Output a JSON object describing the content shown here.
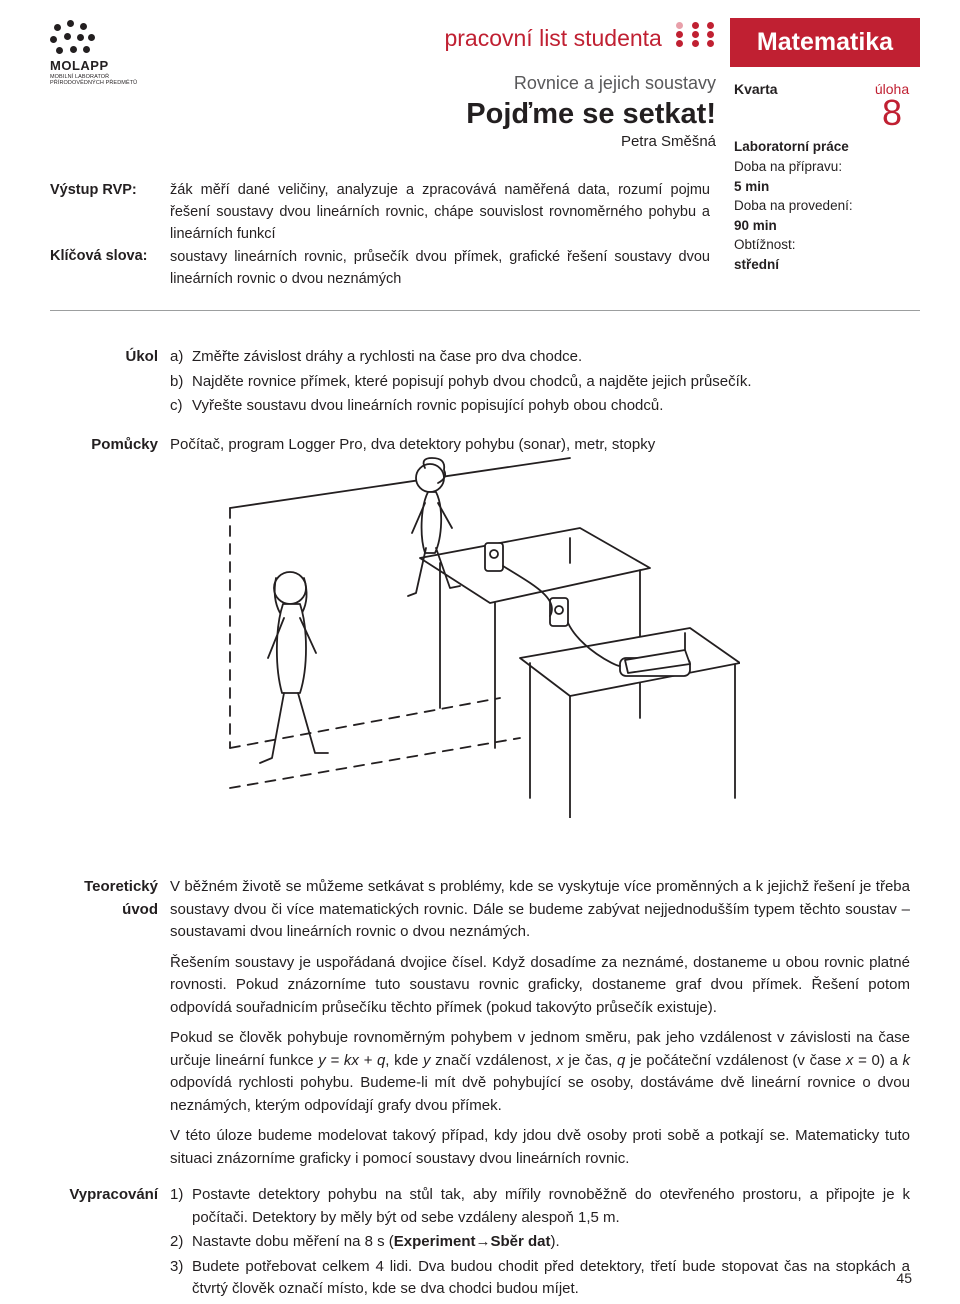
{
  "logo": {
    "name": "MOLAPP",
    "tagline": "MOBILNÍ LABORATOŘ PŘÍRODOVĚDNÝCH PŘEDMĚTŮ"
  },
  "header": {
    "worksheet_label": "pracovní list studenta",
    "subtitle": "Rovnice a jejich soustavy",
    "title": "Pojďme se setkat!",
    "author": "Petra Směšná"
  },
  "subject": "Matematika",
  "grade": "Kvarta",
  "task_label": "úloha",
  "task_number": "8",
  "info": {
    "lab_label": "Laboratorní práce",
    "prep_label": "Doba na přípravu:",
    "prep_value": "5 min",
    "exec_label": "Doba na provedení:",
    "exec_value": "90 min",
    "diff_label": "Obtížnost:",
    "diff_value": "střední"
  },
  "meta": {
    "rvp_label": "Výstup RVP:",
    "rvp_text": "žák měří dané veličiny, analyzuje a zpracovává naměřená data, rozumí pojmu řešení soustavy dvou lineárních rovnic, chápe souvislost rovnoměrného pohybu a lineárních funkcí",
    "kw_label": "Klíčová slova:",
    "kw_text": "soustavy lineárních rovnic, průsečík dvou přímek, grafické řešení soustavy dvou lineárních rovnic o dvou neznámých"
  },
  "sections": {
    "ukol_label": "Úkol",
    "ukol_items": [
      {
        "n": "a)",
        "t": "Změřte závislost dráhy a rychlosti na čase pro dva chodce."
      },
      {
        "n": "b)",
        "t": "Najděte rovnice přímek, které popisují pohyb dvou chodců, a najděte jejich průsečík."
      },
      {
        "n": "c)",
        "t": "Vyřešte soustavu dvou lineárních rovnic popisující pohyb obou chodců."
      }
    ],
    "pomucky_label": "Pomůcky",
    "pomucky_text": "Počítač, program Logger Pro, dva detektory pohybu (sonar), metr, stopky",
    "teor_label": "Teoretický úvod",
    "teor_paragraphs": [
      "V běžném životě se můžeme setkávat s problémy, kde se vyskytuje více proměnných a k jejichž řešení je třeba soustavy dvou či více matematických rovnic. Dále se budeme zabývat nejjednodušším typem těchto soustav – soustavami dvou lineárních rovnic o dvou neznámých.",
      "Řešením soustavy je uspořádaná dvojice čísel. Když dosadíme za neznámé, dostaneme u obou rovnic platné rovnosti. Pokud znázorníme tuto soustavu rovnic graficky, dostaneme graf dvou přímek. Řešení potom odpovídá souřadnicím průsečíku těchto přímek (pokud takovýto průsečík existuje).",
      "Pokud se člověk pohybuje rovnoměrným pohybem v jednom směru, pak jeho vzdálenost v závislosti na čase určuje lineární funkce y = kx + q, kde y značí vzdálenost, x je čas, q je počáteční vzdálenost (v čase x = 0) a k odpovídá rychlosti pohybu. Budeme-li mít dvě pohybující se osoby, dostáváme dvě lineární rovnice o dvou neznámých, kterým odpovídají grafy dvou přímek.",
      "V této úloze budeme modelovat takový případ, kdy jdou dvě osoby proti sobě a potkají se. Matematicky tuto situaci znázorníme graficky i pomocí soustavy dvou lineárních rovnic."
    ],
    "vyprac_label": "Vypracování",
    "vyprac_items": [
      {
        "n": "1)",
        "t": "Postavte detektory pohybu na stůl tak, aby mířily rovnoběžně do otevřeného prostoru, a připojte je k počítači. Detektory by měly být od sebe vzdáleny alespoň 1,5 m."
      },
      {
        "n": "2)",
        "t": "Nastavte dobu měření na 8 s (Experiment→Sběr dat)."
      },
      {
        "n": "3)",
        "t": "Budete potřebovat celkem 4 lidi. Dva budou chodit před detektory, třetí bude stopovat čas na stopkách a čtvrtý člověk označí místo, kde se dva chodci budou míjet."
      }
    ]
  },
  "page_number": "45"
}
